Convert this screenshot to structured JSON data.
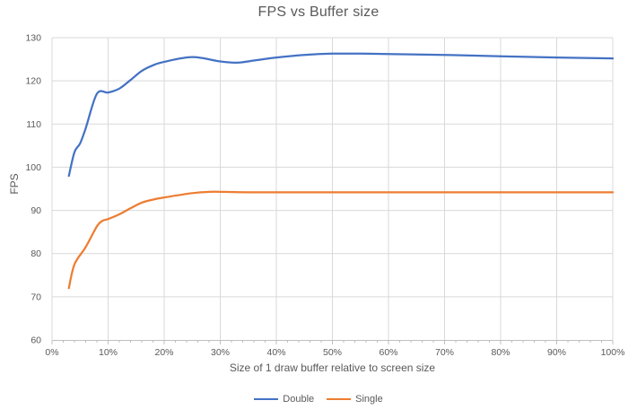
{
  "chart_data": {
    "type": "line",
    "title": "FPS vs Buffer size",
    "xlabel": "Size of 1 draw buffer relative to screen size",
    "ylabel": "FPS",
    "xlim": [
      0,
      100
    ],
    "ylim": [
      60,
      130
    ],
    "grid": true,
    "legend_position": "bottom",
    "x_tick_values": [
      0,
      10,
      20,
      30,
      40,
      50,
      60,
      70,
      80,
      90,
      100
    ],
    "x_ticks": [
      "0%",
      "10%",
      "20%",
      "30%",
      "40%",
      "50%",
      "60%",
      "70%",
      "80%",
      "90%",
      "100%"
    ],
    "x_minor_tick_step": 2,
    "y_ticks": [
      60,
      70,
      80,
      90,
      100,
      110,
      120,
      130
    ],
    "series": [
      {
        "name": "Double",
        "color": "#4472C4",
        "x": [
          3,
          4,
          5,
          6,
          8,
          10,
          12,
          14,
          16,
          18,
          20,
          25,
          30,
          33,
          36,
          40,
          45,
          50,
          55,
          60,
          70,
          80,
          90,
          100
        ],
        "y": [
          98,
          103.5,
          105.5,
          109,
          117,
          117.3,
          118.2,
          120.2,
          122.3,
          123.6,
          124.4,
          125.5,
          124.5,
          124.2,
          124.7,
          125.4,
          126,
          126.3,
          126.3,
          126.2,
          126,
          125.7,
          125.4,
          125.2
        ]
      },
      {
        "name": "Single",
        "color": "#ED7D31",
        "x": [
          3,
          4,
          6,
          8,
          9,
          10,
          12,
          14,
          16,
          18,
          20,
          25,
          28,
          30,
          35,
          40,
          50,
          60,
          70,
          80,
          90,
          100
        ],
        "y": [
          72,
          77.5,
          81.5,
          86.3,
          87.6,
          88,
          89.1,
          90.5,
          91.8,
          92.5,
          93,
          94,
          94.3,
          94.3,
          94.2,
          94.2,
          94.2,
          94.2,
          94.2,
          94.2,
          94.2,
          94.2
        ]
      }
    ],
    "colors": {
      "gridline": "#D9D9D9",
      "axis_line": "#BFBFBF",
      "text": "#595959",
      "background": "#FFFFFF"
    }
  }
}
